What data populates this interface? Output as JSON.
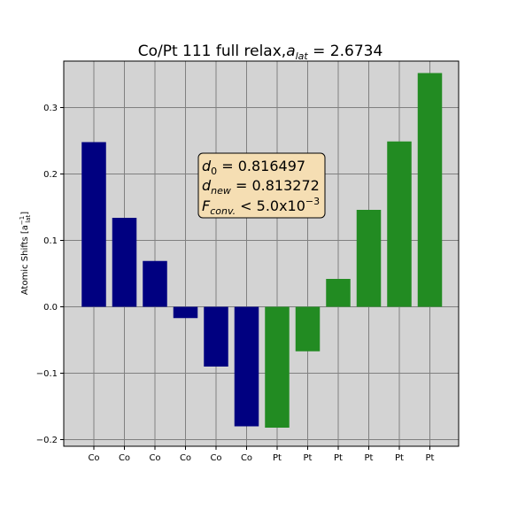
{
  "chart_data": {
    "type": "bar",
    "title": "Co/Pt 111 full relax,",
    "title_math": "a",
    "title_math_sub": "lat",
    "title_value": " = 2.6734",
    "ylabel": "Atomic Shifts [a",
    "ylabel_sup": "−1",
    "ylabel_sub": "lat",
    "ylabel_end": "]",
    "categories": [
      "Co",
      "Co",
      "Co",
      "Co",
      "Co",
      "Co",
      "Pt",
      "Pt",
      "Pt",
      "Pt",
      "Pt",
      "Pt"
    ],
    "values": [
      0.248,
      0.134,
      0.069,
      -0.017,
      -0.09,
      -0.18,
      -0.182,
      -0.067,
      0.042,
      0.146,
      0.249,
      0.352
    ],
    "bar_colors": [
      "#000080",
      "#000080",
      "#000080",
      "#000080",
      "#000080",
      "#000080",
      "#228b22",
      "#228b22",
      "#228b22",
      "#228b22",
      "#228b22",
      "#228b22"
    ],
    "ylim": [
      -0.21,
      0.37
    ],
    "yticks": [
      -0.2,
      -0.1,
      0.0,
      0.1,
      0.2,
      0.3
    ],
    "ytick_labels": [
      "−0.2",
      "−0.1",
      "0.0",
      "0.1",
      "0.2",
      "0.3"
    ],
    "grid": true,
    "background": "#d3d3d3",
    "annotation": {
      "line1_var": "d",
      "line1_sub": "0",
      "line1_val": " = 0.816497",
      "line2_var": "d",
      "line2_sub": "new",
      "line2_val": " = 0.813272",
      "line3_var": "F",
      "line3_sub": "conv.",
      "line3_val": " < 5.0x10",
      "line3_sup": "−3",
      "box_color": "#f5deb3"
    }
  }
}
